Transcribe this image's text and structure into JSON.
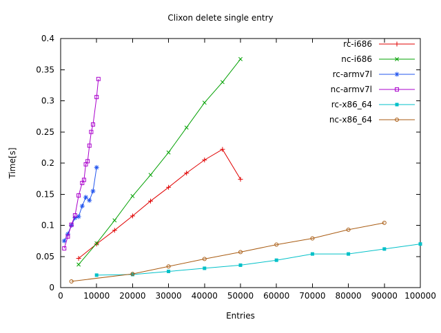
{
  "chart_data": {
    "type": "line",
    "title": "Clixon delete single entry",
    "xlabel": "Entries",
    "ylabel": "Time[s]",
    "xlim": [
      0,
      100000
    ],
    "ylim": [
      0,
      0.4
    ],
    "grid": false,
    "background": "#ffffff",
    "legend_position": "top-right-inside",
    "xtick_values": [
      0,
      10000,
      20000,
      30000,
      40000,
      50000,
      60000,
      70000,
      80000,
      90000,
      100000
    ],
    "xtick_labels": [
      "0",
      "10000",
      "20000",
      "30000",
      "40000",
      "50000",
      "60000",
      "70000",
      "80000",
      "90000",
      "100000"
    ],
    "ytick_values": [
      0,
      0.05,
      0.1,
      0.15,
      0.2,
      0.25,
      0.3,
      0.35,
      0.4
    ],
    "ytick_labels": [
      "0",
      "0.05",
      "0.1",
      "0.15",
      "0.2",
      "0.25",
      "0.3",
      "0.35",
      "0.4"
    ],
    "series": [
      {
        "name": "rc-i686",
        "color": "#e00000",
        "marker": "plus",
        "points": [
          [
            5000,
            0.047
          ],
          [
            10000,
            0.07
          ],
          [
            15000,
            0.092
          ],
          [
            20000,
            0.115
          ],
          [
            25000,
            0.139
          ],
          [
            30000,
            0.161
          ],
          [
            35000,
            0.184
          ],
          [
            40000,
            0.205
          ],
          [
            45000,
            0.222
          ],
          [
            50000,
            0.174
          ]
        ]
      },
      {
        "name": "nc-i686",
        "color": "#00a000",
        "marker": "cross",
        "points": [
          [
            5000,
            0.037
          ],
          [
            10000,
            0.071
          ],
          [
            15000,
            0.108
          ],
          [
            20000,
            0.147
          ],
          [
            25000,
            0.181
          ],
          [
            30000,
            0.217
          ],
          [
            35000,
            0.257
          ],
          [
            40000,
            0.297
          ],
          [
            45000,
            0.33
          ],
          [
            50000,
            0.367
          ]
        ]
      },
      {
        "name": "rc-armv7l",
        "color": "#2255ee",
        "marker": "asterisk",
        "points": [
          [
            1000,
            0.075
          ],
          [
            2000,
            0.086
          ],
          [
            3000,
            0.1
          ],
          [
            4000,
            0.112
          ],
          [
            5000,
            0.114
          ],
          [
            6000,
            0.131
          ],
          [
            7000,
            0.145
          ],
          [
            8000,
            0.14
          ],
          [
            9000,
            0.155
          ],
          [
            10000,
            0.193
          ]
        ]
      },
      {
        "name": "nc-armv7l",
        "color": "#aa00cc",
        "marker": "square-open",
        "points": [
          [
            1000,
            0.063
          ],
          [
            2000,
            0.082
          ],
          [
            3000,
            0.101
          ],
          [
            4000,
            0.116
          ],
          [
            5000,
            0.148
          ],
          [
            6000,
            0.168
          ],
          [
            6500,
            0.173
          ],
          [
            7000,
            0.198
          ],
          [
            7500,
            0.203
          ],
          [
            8000,
            0.228
          ],
          [
            8500,
            0.25
          ],
          [
            9000,
            0.262
          ],
          [
            10000,
            0.306
          ],
          [
            10500,
            0.335
          ]
        ]
      },
      {
        "name": "rc-x86_64",
        "color": "#00c0c8",
        "marker": "square-filled",
        "points": [
          [
            10000,
            0.02
          ],
          [
            20000,
            0.021
          ],
          [
            30000,
            0.026
          ],
          [
            40000,
            0.031
          ],
          [
            50000,
            0.036
          ],
          [
            60000,
            0.044
          ],
          [
            70000,
            0.054
          ],
          [
            80000,
            0.054
          ],
          [
            90000,
            0.062
          ],
          [
            100000,
            0.07
          ]
        ]
      },
      {
        "name": "nc-x86_64",
        "color": "#a85a10",
        "marker": "circle-open",
        "points": [
          [
            3000,
            0.01
          ],
          [
            20000,
            0.022
          ],
          [
            30000,
            0.034
          ],
          [
            40000,
            0.046
          ],
          [
            50000,
            0.057
          ],
          [
            60000,
            0.069
          ],
          [
            70000,
            0.079
          ],
          [
            80000,
            0.093
          ],
          [
            90000,
            0.104
          ]
        ]
      }
    ]
  }
}
